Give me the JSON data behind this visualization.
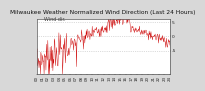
{
  "title": "Milwaukee Weather Normalized Wind Direction (Last 24 Hours)",
  "subtitle": "Wind dir.",
  "bg_color": "#d8d8d8",
  "plot_bg_color": "#ffffff",
  "line_color": "#cc0000",
  "grid_color": "#bbbbbb",
  "ylim": [
    -13,
    6
  ],
  "yticks": [
    -5,
    0,
    5
  ],
  "ytick_labels": [
    "-5",
    "0",
    "5"
  ],
  "n_points": 288,
  "title_fontsize": 4.2,
  "subtitle_fontsize": 3.5,
  "tick_fontsize": 3.2
}
